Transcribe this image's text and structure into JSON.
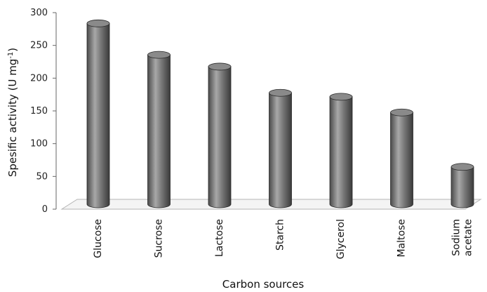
{
  "chart_data": {
    "type": "bar",
    "style": "3d-cylinder",
    "categories": [
      [
        "Glucose"
      ],
      [
        "Sucrose"
      ],
      [
        "Lactose"
      ],
      [
        "Starch"
      ],
      [
        "Glycerol"
      ],
      [
        "Maltose"
      ],
      [
        "Sodium",
        "acetate"
      ]
    ],
    "values": [
      290,
      242,
      224,
      184,
      178,
      154,
      71
    ],
    "xlabel": "Carbon sources",
    "ylabel_main": "Spesific activity (U mg",
    "ylabel_sup": "-1",
    "ylabel_close": ")",
    "ylim": [
      0,
      300
    ],
    "yticks": [
      0,
      50,
      100,
      150,
      200,
      250,
      300
    ],
    "grid": false,
    "legend": "none",
    "colors": {
      "bar_light": "#9a9a9a",
      "bar_mid": "#6e6e6e",
      "bar_dark": "#3e3e3e",
      "bar_top": "#8a8a8a",
      "floor": "#b5b5b5"
    }
  }
}
